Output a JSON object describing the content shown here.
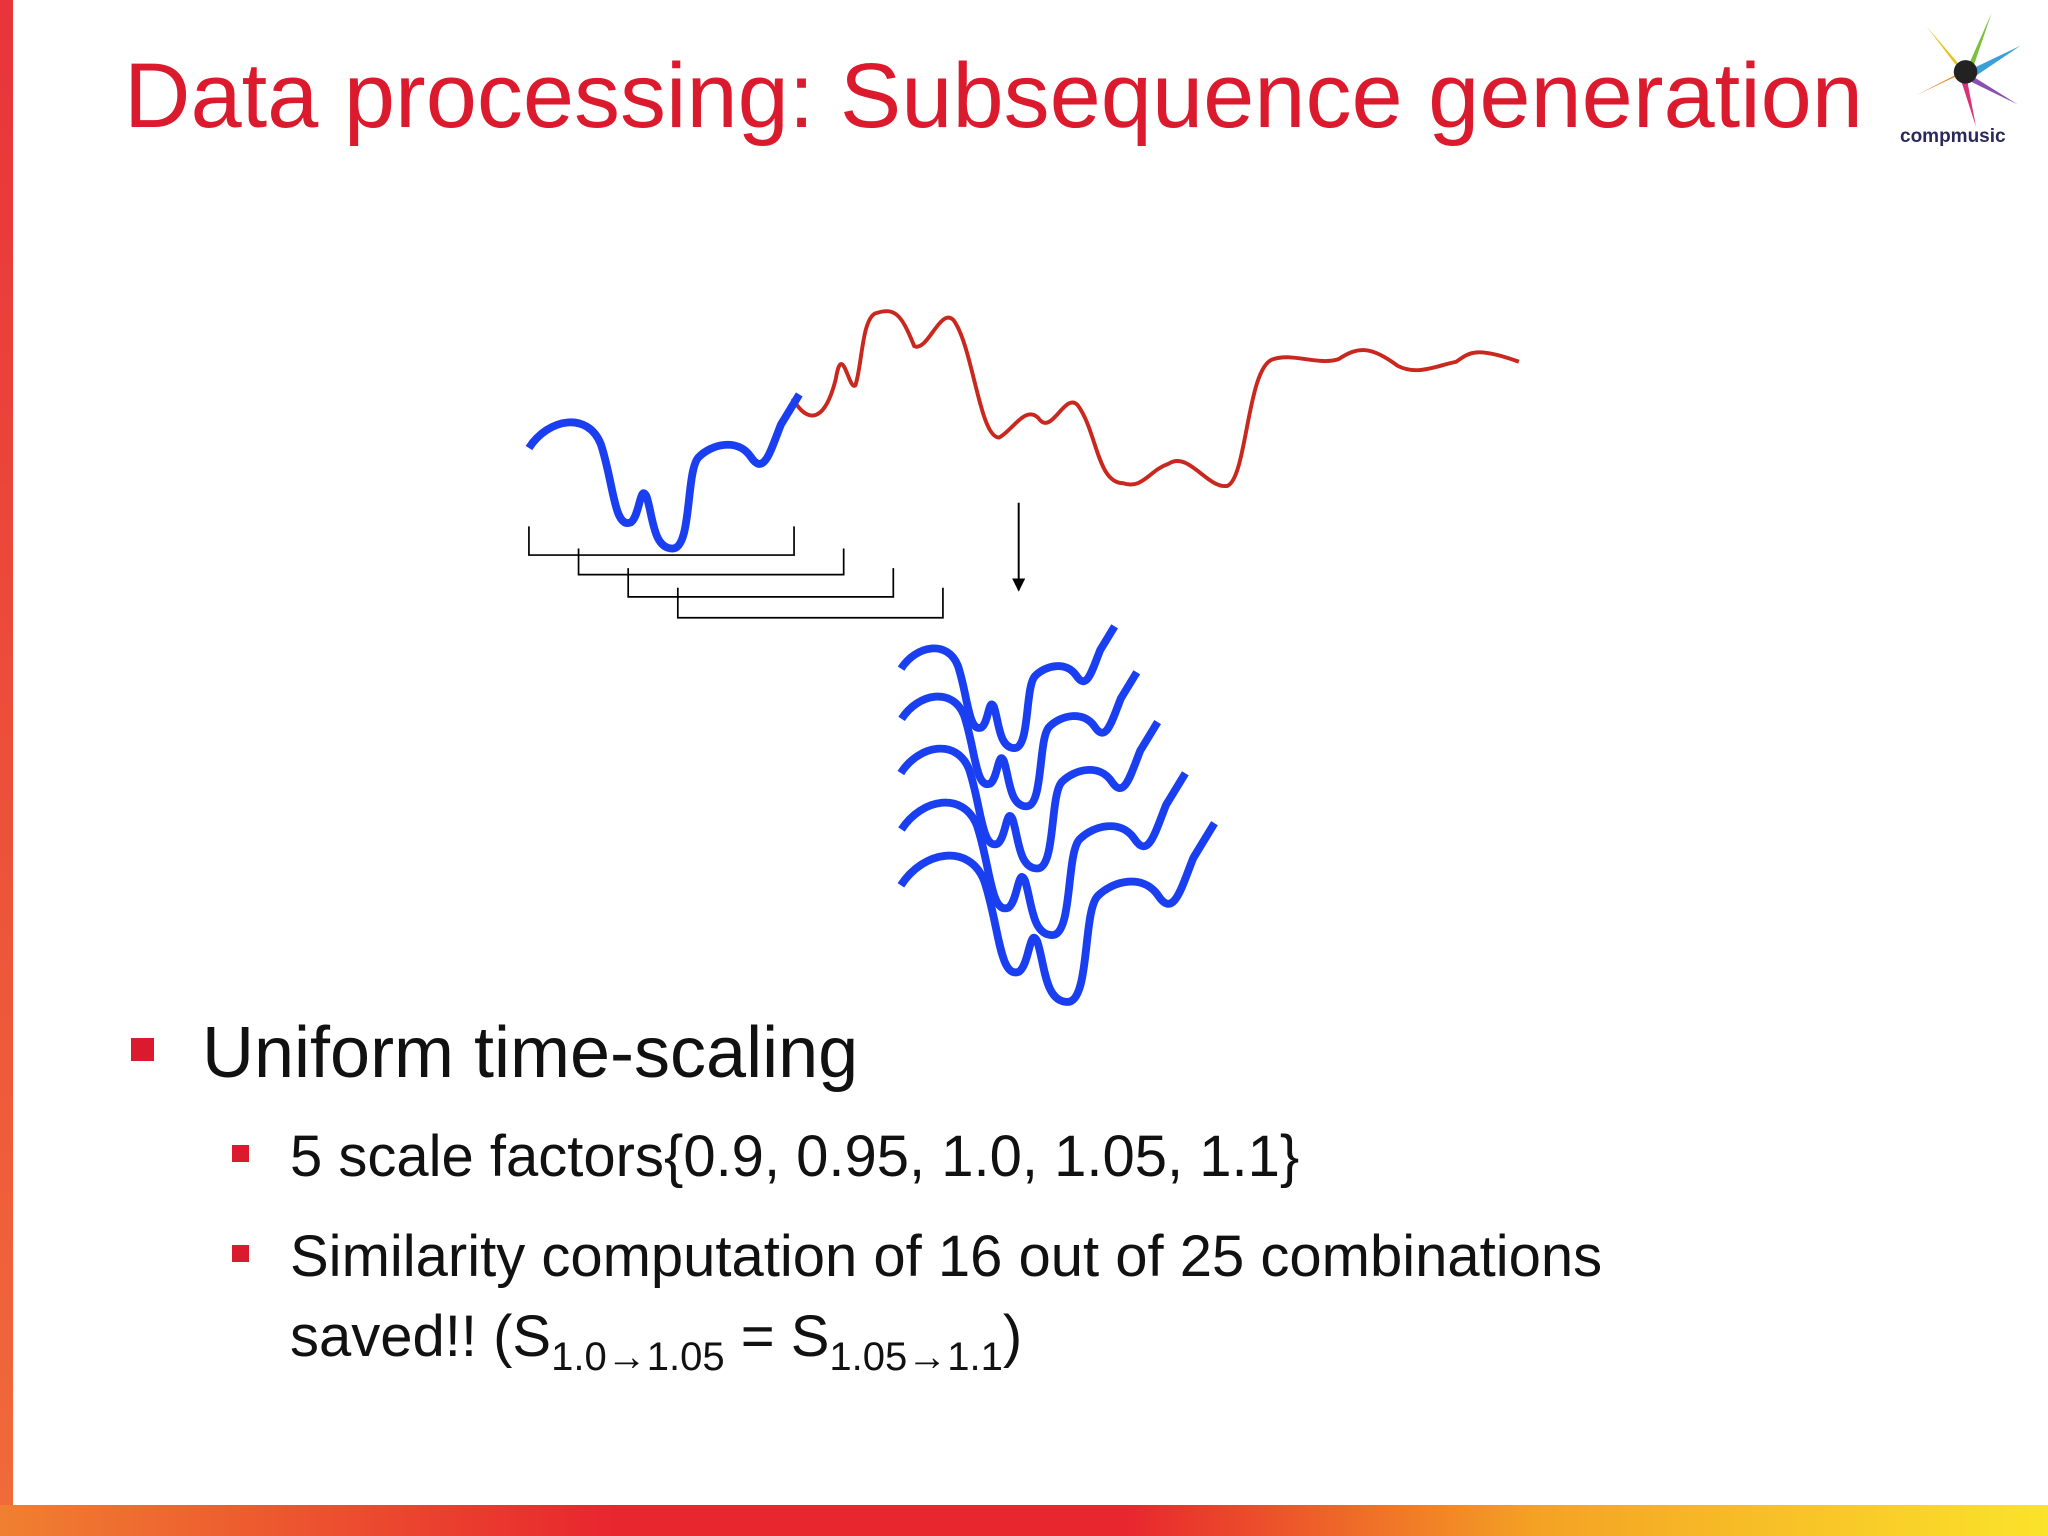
{
  "slide": {
    "title": "Data processing: Subsequence generation",
    "logo": "compmusic",
    "bullet": "Uniform time-scaling",
    "subbullets": [
      "5 scale factors{0.9, 0.95, 1.0, 1.05, 1.1}",
      [
        "Similarity computation of 16 out of 25 combinations",
        "saved!! (S",
        "1.0→1.05",
        " = S",
        "1.05→1.1",
        ")"
      ]
    ]
  }
}
